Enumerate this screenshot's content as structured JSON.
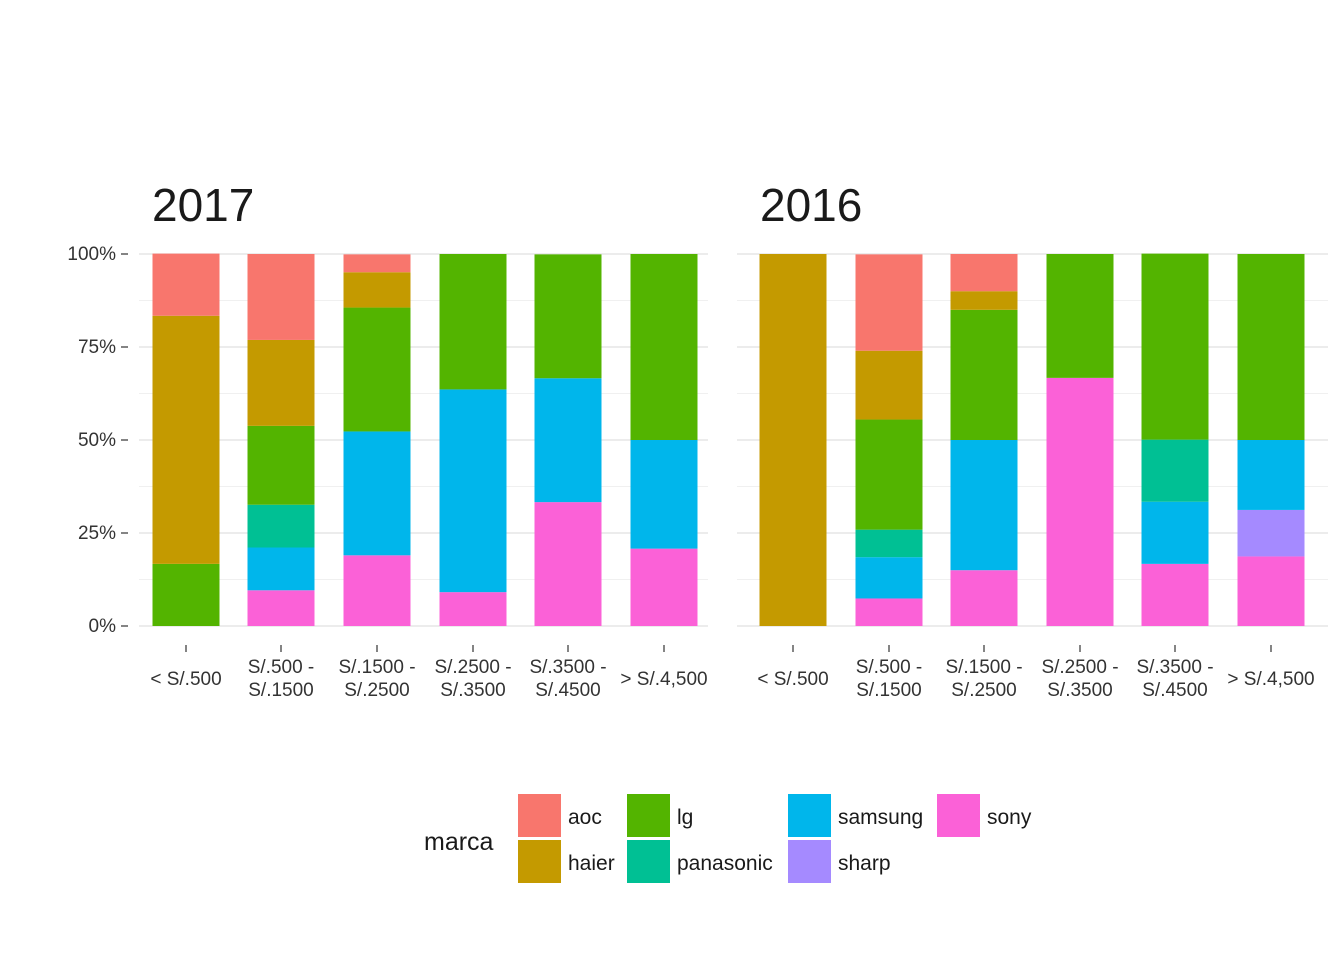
{
  "chart_data": {
    "type": "bar",
    "stacking": "percent",
    "categories": [
      "< S/.500",
      "S/.500 - S/.1500",
      "S/.1500 - S/.2500",
      "S/.2500 - S/.3500",
      "S/.3500 - S/.4500",
      "> S/.4,500"
    ],
    "category_lines": [
      [
        "< S/.500"
      ],
      [
        "S/.500 -",
        "S/.1500"
      ],
      [
        "S/.1500 -",
        "S/.2500"
      ],
      [
        "S/.2500 -",
        "S/.3500"
      ],
      [
        "S/.3500 -",
        "S/.4500"
      ],
      [
        "> S/.4,500"
      ]
    ],
    "y_ticks": [
      "0%",
      "25%",
      "50%",
      "75%",
      "100%"
    ],
    "ylim": [
      0,
      1
    ],
    "grid": true,
    "legend": {
      "title": "marca",
      "position": "bottom",
      "entries": [
        {
          "name": "aoc",
          "color": "#F8766D"
        },
        {
          "name": "haier",
          "color": "#C49A00"
        },
        {
          "name": "lg",
          "color": "#53B400"
        },
        {
          "name": "panasonic",
          "color": "#00C094"
        },
        {
          "name": "samsung",
          "color": "#00B6EB"
        },
        {
          "name": "sharp",
          "color": "#A58AFF"
        },
        {
          "name": "sony",
          "color": "#FB61D7"
        }
      ]
    },
    "stack_order_bottom_to_top": [
      "sony",
      "sharp",
      "samsung",
      "panasonic",
      "lg",
      "haier",
      "aoc"
    ],
    "panels": [
      {
        "title": "2017",
        "series": [
          {
            "name": "aoc",
            "values": [
              0.167,
              0.231,
              0.048,
              0,
              0,
              0
            ]
          },
          {
            "name": "haier",
            "values": [
              0.667,
              0.231,
              0.095,
              0,
              0,
              0
            ]
          },
          {
            "name": "lg",
            "values": [
              0.167,
              0.212,
              0.333,
              0.364,
              0.333,
              0.5
            ]
          },
          {
            "name": "panasonic",
            "values": [
              0,
              0.115,
              0,
              0,
              0,
              0
            ]
          },
          {
            "name": "samsung",
            "values": [
              0,
              0.115,
              0.333,
              0.545,
              0.333,
              0.292
            ]
          },
          {
            "name": "sharp",
            "values": [
              0,
              0,
              0,
              0,
              0,
              0
            ]
          },
          {
            "name": "sony",
            "values": [
              0,
              0.096,
              0.19,
              0.091,
              0.333,
              0.208
            ]
          }
        ]
      },
      {
        "title": "2016",
        "series": [
          {
            "name": "aoc",
            "values": [
              0,
              0.259,
              0.1,
              0,
              0,
              0
            ]
          },
          {
            "name": "haier",
            "values": [
              1,
              0.185,
              0.05,
              0,
              0,
              0
            ]
          },
          {
            "name": "lg",
            "values": [
              0,
              0.296,
              0.35,
              0.333,
              0.5,
              0.5
            ]
          },
          {
            "name": "panasonic",
            "values": [
              0,
              0.074,
              0,
              0,
              0.167,
              0
            ]
          },
          {
            "name": "samsung",
            "values": [
              0,
              0.111,
              0.35,
              0,
              0.167,
              0.188
            ]
          },
          {
            "name": "sharp",
            "values": [
              0,
              0,
              0,
              0,
              0,
              0.125
            ]
          },
          {
            "name": "sony",
            "values": [
              0,
              0.074,
              0.15,
              0.667,
              0.167,
              0.187
            ]
          }
        ]
      }
    ]
  }
}
